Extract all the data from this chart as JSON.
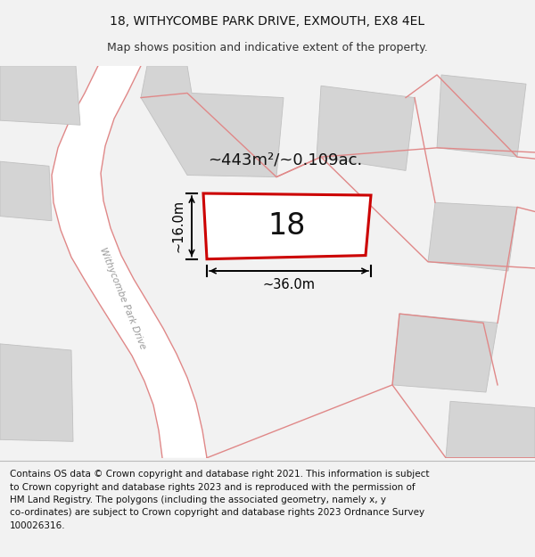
{
  "title_line1": "18, WITHYCOMBE PARK DRIVE, EXMOUTH, EX8 4EL",
  "title_line2": "Map shows position and indicative extent of the property.",
  "footer_text": "Contains OS data © Crown copyright and database right 2021. This information is subject\nto Crown copyright and database rights 2023 and is reproduced with the permission of\nHM Land Registry. The polygons (including the associated geometry, namely x, y\nco-ordinates) are subject to Crown copyright and database rights 2023 Ordnance Survey\n100026316.",
  "area_label": "~443m²/~0.109ac.",
  "number_label": "18",
  "width_label": "~36.0m",
  "height_label": "~16.0m",
  "road_label": "Withycombe Park Drive",
  "bg_color": "#f2f2f2",
  "map_bg": "#eeecec",
  "plot_fill": "#ffffff",
  "plot_edge": "#cc0000",
  "road_fill": "#ffffff",
  "building_fill": "#d4d4d4",
  "building_edge": "#c0c0c0",
  "road_line_color": "#e08888",
  "dim_color": "#000000",
  "title_fontsize": 10,
  "subtitle_fontsize": 9,
  "footer_fontsize": 7.5,
  "label_fontsize": 13,
  "number_fontsize": 24,
  "dim_fontsize": 10.5,
  "road_text_fontsize": 7.5
}
